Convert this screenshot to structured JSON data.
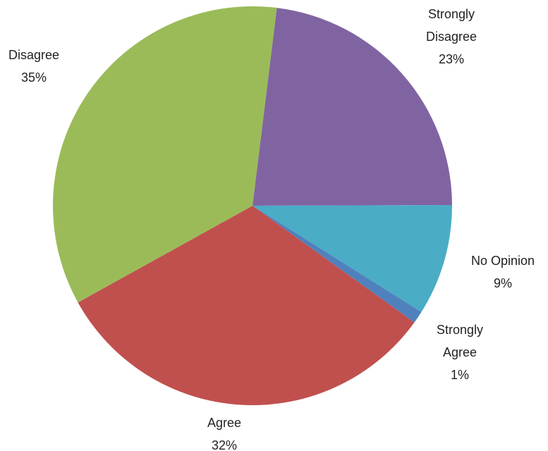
{
  "chart_data": {
    "type": "pie",
    "categories": [
      "Strongly Disagree",
      "No Opinion",
      "Strongly Agree",
      "Agree",
      "Disagree"
    ],
    "values": [
      23,
      9,
      1,
      32,
      35
    ],
    "value_labels": [
      "23%",
      "9%",
      "1%",
      "32%",
      "35%"
    ],
    "colors": [
      "#8064a2",
      "#4bacc6",
      "#4f81bd",
      "#c0504d",
      "#9bbb59"
    ]
  }
}
